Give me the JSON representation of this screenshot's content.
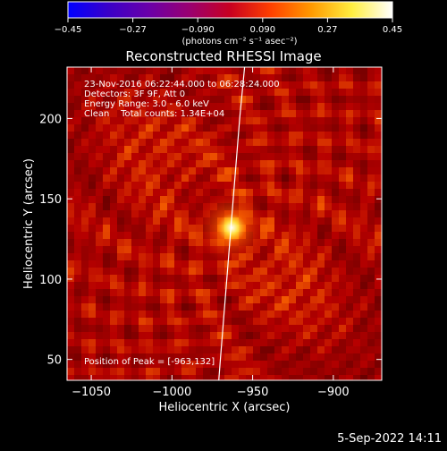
{
  "chart_data": {
    "type": "heatmap",
    "title": "Reconstructed RHESSI Image",
    "xlabel": "Heliocentric X (arcsec)",
    "ylabel": "Heliocentric Y (arcsec)",
    "xlim": [
      -1065,
      -870
    ],
    "ylim": [
      37,
      232
    ],
    "xticks": [
      -1050,
      -1000,
      -950,
      -900
    ],
    "xtick_labels": [
      "−1050",
      "−1000",
      "−950",
      "−900"
    ],
    "yticks": [
      50,
      100,
      150,
      200
    ],
    "ytick_labels": [
      "50",
      "100",
      "150",
      "200"
    ],
    "peak": {
      "x": -963,
      "y": 132
    },
    "peak_label": "Position of Peak = [-963,132]",
    "colorbar": {
      "min": -0.45,
      "max": 0.45,
      "ticks": [
        -0.45,
        -0.27,
        -0.09,
        0.09,
        0.27,
        0.45
      ],
      "tick_labels": [
        "−0.45",
        "−0.27",
        "−0.090",
        "0.090",
        "0.27",
        "0.45"
      ],
      "units_label": "(photons cm⁻² s⁻¹ asec⁻²)",
      "colormap": [
        "#0000ff",
        "#3a00c8",
        "#6a00a8",
        "#9a0070",
        "#c80020",
        "#ff4000",
        "#ff9a00",
        "#ffee40",
        "#ffffff"
      ]
    },
    "info_lines": [
      "23-Nov-2016 06:22:44.000 to 06:28:24.000",
      "Detectors: 3F 9F, Att 0",
      "Energy Range: 3.0 - 6.0 keV",
      "Clean    Total counts: 1.34E+04"
    ],
    "limb": [
      [
        -955,
        232
      ],
      [
        -958,
        200
      ],
      [
        -962,
        150
      ],
      [
        -966,
        100
      ],
      [
        -970,
        50
      ],
      [
        -971,
        37
      ]
    ]
  },
  "footer": {
    "date": "5-Sep-2022 14:11"
  }
}
